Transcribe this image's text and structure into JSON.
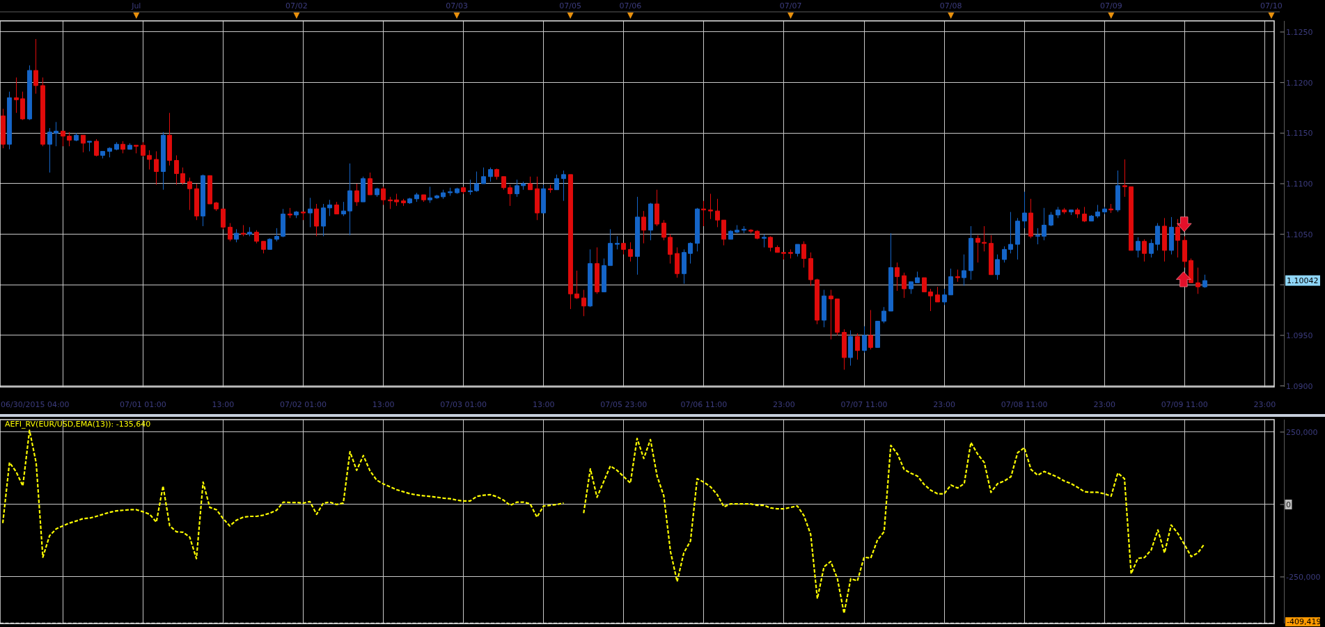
{
  "chart_data": [
    {
      "type": "candlestick",
      "categories": [
        null,
        null,
        null,
        null,
        null,
        null,
        null,
        null,
        null,
        null,
        null,
        null,
        null,
        null,
        null,
        null,
        null,
        null,
        null,
        null,
        "Jul",
        "07/01 01:00",
        null,
        null,
        null,
        null,
        null,
        null,
        null,
        null,
        null,
        null,
        null,
        "13:00",
        null,
        null,
        null,
        null,
        null,
        null,
        null,
        null,
        null,
        null,
        "07/02",
        "07/02 01:00",
        null,
        null,
        null,
        null,
        null,
        null,
        null,
        null,
        null,
        null,
        null,
        "13:00",
        null,
        null,
        null,
        null,
        null,
        null,
        null,
        null,
        null,
        null,
        "07/03",
        "07/03 01:00",
        null,
        null,
        null,
        null,
        null,
        null,
        null,
        null,
        null,
        null,
        null,
        "13:00",
        null,
        null,
        null,
        "07/05",
        null,
        null,
        null,
        null,
        null,
        null,
        null,
        "07/05 23:00",
        "07/06",
        null,
        null,
        null,
        null,
        null,
        null,
        null,
        null,
        null,
        null,
        "07/06 11:00",
        null,
        null,
        null,
        null,
        null,
        null,
        null,
        null,
        null,
        null,
        null,
        "23:00",
        "07/07",
        null,
        null,
        null,
        null,
        null,
        null,
        null,
        null,
        null,
        null,
        "07/07 11:00",
        null,
        null,
        null,
        null,
        null,
        null,
        null,
        null,
        null,
        null,
        null,
        "23:00",
        "07/08",
        null,
        null,
        null,
        null,
        null,
        null,
        null,
        null,
        null,
        null,
        "07/08 11:00",
        null,
        null,
        null,
        null,
        null,
        null,
        null,
        null,
        null,
        null,
        null,
        "23:00",
        "07/09",
        null,
        null,
        null,
        null,
        null,
        null,
        null,
        null,
        null,
        null,
        "07/09 11:00",
        null,
        null,
        null,
        null,
        null,
        null,
        null,
        null,
        null,
        null,
        null,
        "23:00",
        "07/10"
      ],
      "ohlc": [
        [
          1.1167,
          1.1174,
          1.1135,
          1.1139
        ],
        [
          1.1139,
          1.1191,
          1.1134,
          1.1185
        ],
        [
          1.1185,
          1.1205,
          1.117,
          1.1183
        ],
        [
          1.1184,
          1.1191,
          1.1163,
          1.1164
        ],
        [
          1.1164,
          1.1217,
          1.1163,
          1.1212
        ],
        [
          1.1212,
          1.1243,
          1.1189,
          1.1197
        ],
        [
          1.1197,
          1.1205,
          1.1137,
          1.1139
        ],
        [
          1.1139,
          1.1155,
          1.1111,
          1.1151
        ],
        [
          1.115,
          1.1161,
          1.1137,
          1.1152
        ],
        [
          1.1152,
          1.1152,
          1.1137,
          1.1147
        ],
        [
          1.1147,
          1.1151,
          1.1137,
          1.1143
        ],
        [
          1.1143,
          1.115,
          1.1142,
          1.1148
        ],
        [
          1.1148,
          1.1148,
          1.1131,
          1.114
        ],
        [
          1.1141,
          1.1142,
          1.1132,
          1.1142
        ],
        [
          1.1142,
          1.1144,
          1.1127,
          1.1128
        ],
        [
          1.1128,
          1.1132,
          1.1125,
          1.1132
        ],
        [
          1.1132,
          1.1136,
          1.1126,
          1.1135
        ],
        [
          1.1134,
          1.1141,
          1.1133,
          1.1139
        ],
        [
          1.1139,
          1.1142,
          1.113,
          1.1134
        ],
        [
          1.1134,
          1.114,
          1.1134,
          1.1138
        ],
        [
          1.1138,
          1.1138,
          1.113,
          1.1137
        ],
        [
          1.1138,
          1.1141,
          1.1127,
          1.1128
        ],
        [
          1.1128,
          1.1133,
          1.1114,
          1.1124
        ],
        [
          1.1124,
          1.1132,
          1.1099,
          1.1112
        ],
        [
          1.1112,
          1.1151,
          1.1094,
          1.1148
        ],
        [
          1.1148,
          1.117,
          1.1118,
          1.1123
        ],
        [
          1.1123,
          1.1128,
          1.1099,
          1.111
        ],
        [
          1.111,
          1.1116,
          1.1099,
          1.1101
        ],
        [
          1.1102,
          1.1106,
          1.1074,
          1.1095
        ],
        [
          1.1095,
          1.11,
          1.1064,
          1.1068
        ],
        [
          1.1068,
          1.1109,
          1.1058,
          1.1108
        ],
        [
          1.1108,
          1.1108,
          1.108,
          1.108
        ],
        [
          1.1081,
          1.1082,
          1.1073,
          1.1075
        ],
        [
          1.1075,
          1.1075,
          1.1055,
          1.1057
        ],
        [
          1.1057,
          1.1061,
          1.1043,
          1.1045
        ],
        [
          1.1045,
          1.1055,
          1.1042,
          1.1051
        ],
        [
          1.1051,
          1.1059,
          1.1048,
          1.105
        ],
        [
          1.105,
          1.1057,
          1.1048,
          1.1052
        ],
        [
          1.1052,
          1.1054,
          1.1041,
          1.1043
        ],
        [
          1.1043,
          1.1043,
          1.1031,
          1.1035
        ],
        [
          1.1035,
          1.1046,
          1.1035,
          1.1045
        ],
        [
          1.1045,
          1.1056,
          1.1043,
          1.1048
        ],
        [
          1.1048,
          1.1075,
          1.1047,
          1.107
        ],
        [
          1.107,
          1.1076,
          1.1066,
          1.1069
        ],
        [
          1.1069,
          1.1073,
          1.1066,
          1.1072
        ],
        [
          1.1072,
          1.1072,
          1.1064,
          1.1071
        ],
        [
          1.1071,
          1.1086,
          1.1057,
          1.1075
        ],
        [
          1.1075,
          1.108,
          1.1048,
          1.1058
        ],
        [
          1.1058,
          1.108,
          1.1048,
          1.1076
        ],
        [
          1.1076,
          1.1084,
          1.1068,
          1.1079
        ],
        [
          1.1079,
          1.1082,
          1.107,
          1.107
        ],
        [
          1.107,
          1.1082,
          1.1068,
          1.1073
        ],
        [
          1.1073,
          1.112,
          1.1049,
          1.1093
        ],
        [
          1.1093,
          1.11,
          1.1078,
          1.1082
        ],
        [
          1.1082,
          1.1107,
          1.1082,
          1.1105
        ],
        [
          1.1105,
          1.1111,
          1.1089,
          1.1089
        ],
        [
          1.1089,
          1.1096,
          1.1087,
          1.1095
        ],
        [
          1.1095,
          1.1097,
          1.1079,
          1.1084
        ],
        [
          1.1084,
          1.1087,
          1.1075,
          1.1083
        ],
        [
          1.1084,
          1.109,
          1.1078,
          1.1082
        ],
        [
          1.1083,
          1.1085,
          1.1078,
          1.1081
        ],
        [
          1.1081,
          1.1086,
          1.108,
          1.1085
        ],
        [
          1.1085,
          1.1091,
          1.1082,
          1.1089
        ],
        [
          1.1089,
          1.1089,
          1.1082,
          1.1084
        ],
        [
          1.1084,
          1.1097,
          1.1081,
          1.1086
        ],
        [
          1.1086,
          1.1089,
          1.1085,
          1.1088
        ],
        [
          1.1087,
          1.1094,
          1.1085,
          1.1091
        ],
        [
          1.1091,
          1.1096,
          1.1088,
          1.1092
        ],
        [
          1.1091,
          1.1096,
          1.109,
          1.1095
        ],
        [
          1.1096,
          1.1097,
          1.109,
          1.1092
        ],
        [
          1.1092,
          1.1104,
          1.1089,
          1.1093
        ],
        [
          1.1093,
          1.1112,
          1.1092,
          1.11
        ],
        [
          1.11,
          1.1116,
          1.11,
          1.1107
        ],
        [
          1.1107,
          1.1116,
          1.1102,
          1.1114
        ],
        [
          1.1114,
          1.1115,
          1.1104,
          1.1107
        ],
        [
          1.1107,
          1.1107,
          1.1094,
          1.1096
        ],
        [
          1.1096,
          1.1099,
          1.1078,
          1.109
        ],
        [
          1.109,
          1.1104,
          1.1087,
          1.1098
        ],
        [
          1.1098,
          1.1102,
          1.1094,
          1.11
        ],
        [
          1.11,
          1.1107,
          1.1094,
          1.1094
        ],
        [
          1.1095,
          1.1107,
          1.1064,
          1.1071
        ],
        [
          1.1071,
          1.1099,
          1.1071,
          1.1095
        ],
        [
          1.1095,
          1.1099,
          1.1091,
          1.1094
        ],
        [
          1.1094,
          1.1109,
          1.1094,
          1.1105
        ],
        [
          1.1105,
          1.1113,
          1.1083,
          1.1109
        ],
        [
          1.1109,
          1.1109,
          1.0976,
          1.0991
        ],
        [
          1.0991,
          1.1014,
          1.0986,
          1.0987
        ],
        [
          1.0987,
          1.0995,
          1.0969,
          1.0979
        ],
        [
          1.0979,
          1.1035,
          1.0978,
          1.1021
        ],
        [
          1.1021,
          1.1037,
          1.0991,
          1.0993
        ],
        [
          1.0993,
          1.1026,
          1.0993,
          1.1019
        ],
        [
          1.1019,
          1.1055,
          1.1019,
          1.1041
        ],
        [
          1.104,
          1.1048,
          1.1035,
          1.1041
        ],
        [
          1.1041,
          1.1041,
          1.103,
          1.1035
        ],
        [
          1.1035,
          1.1042,
          1.1023,
          1.1028
        ],
        [
          1.1028,
          1.1087,
          1.101,
          1.1067
        ],
        [
          1.1067,
          1.1073,
          1.1041,
          1.1054
        ],
        [
          1.1054,
          1.1081,
          1.1044,
          1.108
        ],
        [
          1.108,
          1.1094,
          1.1058,
          1.106
        ],
        [
          1.1061,
          1.1064,
          1.1044,
          1.1047
        ],
        [
          1.1047,
          1.105,
          1.1021,
          1.103
        ],
        [
          1.1031,
          1.1037,
          1.1007,
          1.1011
        ],
        [
          1.1011,
          1.1035,
          1.1001,
          1.1032
        ],
        [
          1.1031,
          1.1042,
          1.1021,
          1.1041
        ],
        [
          1.1041,
          1.1076,
          1.1033,
          1.1075
        ],
        [
          1.1075,
          1.1083,
          1.1058,
          1.1074
        ],
        [
          1.1074,
          1.109,
          1.1065,
          1.1073
        ],
        [
          1.1073,
          1.1085,
          1.1057,
          1.1064
        ],
        [
          1.1064,
          1.1064,
          1.1039,
          1.1045
        ],
        [
          1.1045,
          1.1054,
          1.1045,
          1.1053
        ],
        [
          1.1052,
          1.1059,
          1.1051,
          1.1054
        ],
        [
          1.1054,
          1.1058,
          1.1051,
          1.1055
        ],
        [
          1.1054,
          1.1055,
          1.1051,
          1.1053
        ],
        [
          1.1053,
          1.1054,
          1.1045,
          1.1046
        ],
        [
          1.1046,
          1.105,
          1.1037,
          1.1047
        ],
        [
          1.1047,
          1.1048,
          1.1033,
          1.1037
        ],
        [
          1.1037,
          1.1039,
          1.1032,
          1.1032
        ],
        [
          1.1032,
          1.1032,
          1.1025,
          1.1031
        ],
        [
          1.1032,
          1.1035,
          1.1026,
          1.1031
        ],
        [
          1.1031,
          1.104,
          1.1028,
          1.104
        ],
        [
          1.104,
          1.1043,
          1.1017,
          1.1026
        ],
        [
          1.1026,
          1.1032,
          1.0999,
          1.1005
        ],
        [
          1.1005,
          1.1006,
          1.0961,
          1.0965
        ],
        [
          1.0965,
          1.0995,
          1.0958,
          1.0989
        ],
        [
          1.0989,
          1.0995,
          1.0946,
          1.0986
        ],
        [
          1.0986,
          1.0986,
          1.095,
          1.0953
        ],
        [
          1.0953,
          1.0956,
          1.0916,
          1.0928
        ],
        [
          1.0928,
          1.0955,
          1.092,
          1.0949
        ],
        [
          1.0949,
          1.0952,
          1.0926,
          1.0935
        ],
        [
          1.0935,
          1.0959,
          1.0933,
          1.095
        ],
        [
          1.095,
          1.0975,
          1.0936,
          1.0938
        ],
        [
          1.0938,
          1.0964,
          1.0938,
          1.0964
        ],
        [
          1.0964,
          1.0978,
          1.0962,
          1.0974
        ],
        [
          1.0974,
          1.1051,
          1.0974,
          1.1017
        ],
        [
          1.1017,
          1.1022,
          1.0994,
          1.1008
        ],
        [
          1.1009,
          1.1012,
          1.0987,
          1.0996
        ],
        [
          1.0996,
          1.1003,
          1.0991,
          1.1003
        ],
        [
          1.1002,
          1.1013,
          1.1002,
          1.1007
        ],
        [
          1.1007,
          1.1007,
          1.0993,
          1.0993
        ],
        [
          1.0993,
          1.0996,
          1.0974,
          1.0989
        ],
        [
          1.099,
          1.0998,
          1.0983,
          1.0983
        ],
        [
          1.0983,
          1.0996,
          1.098,
          1.099
        ],
        [
          1.099,
          1.1016,
          1.099,
          1.1008
        ],
        [
          1.1008,
          1.1015,
          1.1003,
          1.1007
        ],
        [
          1.1007,
          1.103,
          1.0999,
          1.1014
        ],
        [
          1.1014,
          1.1058,
          1.1005,
          1.1046
        ],
        [
          1.1046,
          1.1049,
          1.1022,
          1.1042
        ],
        [
          1.1042,
          1.1058,
          1.1033,
          1.1041
        ],
        [
          1.1041,
          1.1049,
          1.101,
          1.101
        ],
        [
          1.101,
          1.103,
          1.1005,
          1.1025
        ],
        [
          1.1025,
          1.1038,
          1.1022,
          1.1035
        ],
        [
          1.1035,
          1.1072,
          1.1031,
          1.104
        ],
        [
          1.104,
          1.1066,
          1.1025,
          1.1063
        ],
        [
          1.1063,
          1.1092,
          1.1056,
          1.1071
        ],
        [
          1.1071,
          1.1085,
          1.1046,
          1.1048
        ],
        [
          1.1048,
          1.1056,
          1.104,
          1.1049
        ],
        [
          1.1048,
          1.1076,
          1.1044,
          1.1059
        ],
        [
          1.1059,
          1.1072,
          1.1058,
          1.1069
        ],
        [
          1.1069,
          1.1077,
          1.1066,
          1.1074
        ],
        [
          1.1074,
          1.1076,
          1.107,
          1.1072
        ],
        [
          1.1072,
          1.1074,
          1.1069,
          1.1074
        ],
        [
          1.1074,
          1.1076,
          1.1066,
          1.107
        ],
        [
          1.107,
          1.1077,
          1.1062,
          1.1063
        ],
        [
          1.1063,
          1.1069,
          1.1063,
          1.1068
        ],
        [
          1.1068,
          1.1079,
          1.1066,
          1.1072
        ],
        [
          1.1072,
          1.1077,
          1.107,
          1.1075
        ],
        [
          1.1075,
          1.108,
          1.1071,
          1.1074
        ],
        [
          1.1074,
          1.1113,
          1.1072,
          1.1098
        ],
        [
          1.1098,
          1.1124,
          1.1087,
          1.1097
        ],
        [
          1.1097,
          1.1097,
          1.1034,
          1.1034
        ],
        [
          1.1034,
          1.1047,
          1.1027,
          1.1043
        ],
        [
          1.1043,
          1.1045,
          1.1023,
          1.1031
        ],
        [
          1.1031,
          1.1045,
          1.1027,
          1.1041
        ],
        [
          1.104,
          1.1061,
          1.1034,
          1.1058
        ],
        [
          1.1058,
          1.1066,
          1.1023,
          1.1034
        ],
        [
          1.1034,
          1.1067,
          1.103,
          1.1057
        ],
        [
          1.1057,
          1.1065,
          1.1027,
          1.1044
        ],
        [
          1.1044,
          1.1048,
          1.1017,
          1.1023
        ],
        [
          1.1024,
          1.1026,
          1.1002,
          1.1002
        ],
        [
          1.1002,
          1.1017,
          1.0991,
          1.0998
        ],
        [
          1.0998,
          1.101,
          1.0997,
          1.10042
        ],
        null,
        null,
        null,
        null,
        null,
        null,
        null,
        null,
        null,
        null
      ],
      "colors": [
        "#e00b0b",
        "#1565c8",
        "#e00b0b",
        "#e00b0b",
        "#1565c8",
        "#e00b0b",
        "#e00b0b",
        "#1565c8",
        "#1565c8",
        "#e00b0b",
        "#e00b0b",
        "#1565c8",
        "#e00b0b",
        "#1565c8",
        "#e00b0b",
        "#1565c8",
        "#1565c8",
        "#1565c8",
        "#e00b0b",
        "#1565c8",
        "#e00b0b",
        "#e00b0b",
        "#e00b0b",
        "#e00b0b",
        "#1565c8",
        "#e00b0b",
        "#e00b0b",
        "#e00b0b",
        "#e00b0b",
        "#e00b0b",
        "#1565c8",
        "#e00b0b",
        "#e00b0b",
        "#e00b0b",
        "#e00b0b",
        "#1565c8",
        "#e00b0b",
        "#1565c8",
        "#e00b0b",
        "#e00b0b",
        "#1565c8",
        "#1565c8",
        "#1565c8",
        "#e00b0b",
        "#1565c8",
        "#e00b0b",
        "#1565c8",
        "#e00b0b",
        "#1565c8",
        "#1565c8",
        "#e00b0b",
        "#1565c8",
        "#1565c8",
        "#e00b0b",
        "#1565c8",
        "#e00b0b",
        "#1565c8",
        "#e00b0b",
        "#e00b0b",
        "#e00b0b",
        "#e00b0b",
        "#1565c8",
        "#1565c8",
        "#e00b0b",
        "#1565c8",
        "#1565c8",
        "#1565c8",
        "#1565c8",
        "#1565c8",
        "#e00b0b",
        "#1565c8",
        "#1565c8",
        "#1565c8",
        "#1565c8",
        "#e00b0b",
        "#e00b0b",
        "#e00b0b",
        "#1565c8",
        "#1565c8",
        "#e00b0b",
        "#e00b0b",
        "#1565c8",
        "#e00b0b",
        "#1565c8",
        "#1565c8",
        "#e00b0b",
        "#e00b0b",
        "#e00b0b",
        "#1565c8",
        "#e00b0b",
        "#1565c8",
        "#1565c8",
        "#1565c8",
        "#e00b0b",
        "#e00b0b",
        "#1565c8",
        "#e00b0b",
        "#1565c8",
        "#e00b0b",
        "#e00b0b",
        "#e00b0b",
        "#e00b0b",
        "#1565c8",
        "#1565c8",
        "#1565c8",
        "#e00b0b",
        "#e00b0b",
        "#e00b0b",
        "#e00b0b",
        "#1565c8",
        "#1565c8",
        "#1565c8",
        "#e00b0b",
        "#e00b0b",
        "#1565c8",
        "#e00b0b",
        "#e00b0b",
        "#e00b0b",
        "#e00b0b",
        "#1565c8",
        "#e00b0b",
        "#e00b0b",
        "#e00b0b",
        "#1565c8",
        "#e00b0b",
        "#e00b0b",
        "#e00b0b",
        "#1565c8",
        "#e00b0b",
        "#1565c8",
        "#e00b0b",
        "#1565c8",
        "#1565c8",
        "#1565c8",
        "#e00b0b",
        "#e00b0b",
        "#1565c8",
        "#1565c8",
        "#e00b0b",
        "#e00b0b",
        "#e00b0b",
        "#1565c8",
        "#1565c8",
        "#e00b0b",
        "#1565c8",
        "#1565c8",
        "#e00b0b",
        "#e00b0b",
        "#e00b0b",
        "#1565c8",
        "#1565c8",
        "#1565c8",
        "#1565c8",
        "#1565c8",
        "#e00b0b",
        "#1565c8",
        "#1565c8",
        "#1565c8",
        "#1565c8",
        "#e00b0b",
        "#1565c8",
        "#e00b0b",
        "#e00b0b",
        "#1565c8",
        "#1565c8",
        "#1565c8",
        "#e00b0b",
        "#1565c8",
        "#e00b0b",
        "#e00b0b",
        "#1565c8",
        "#e00b0b",
        "#1565c8",
        "#1565c8",
        "#e00b0b",
        "#1565c8",
        "#e00b0b",
        "#e00b0b",
        "#e00b0b",
        "#e00b0b",
        "#1565c8",
        null,
        null,
        null,
        null,
        null,
        null,
        null,
        null,
        null,
        null
      ],
      "value_labels": [
        null,
        null,
        null,
        null,
        null,
        null,
        null,
        null,
        null,
        null,
        null,
        null,
        null,
        null,
        null,
        null,
        null,
        null,
        null,
        null,
        null,
        null,
        null,
        null,
        null,
        null,
        null,
        null,
        null,
        null,
        null,
        null,
        null,
        null,
        null,
        null,
        null,
        null,
        null,
        null,
        null,
        null,
        null,
        null,
        null,
        null,
        null,
        null,
        null,
        null,
        null,
        null,
        null,
        null,
        null,
        null,
        null,
        null,
        null,
        null,
        null,
        null,
        null,
        null,
        null,
        null,
        null,
        null,
        null,
        null,
        null,
        null,
        null,
        null,
        null,
        null,
        null,
        null,
        null,
        null,
        null,
        null,
        null,
        null,
        null,
        null,
        null,
        null,
        null,
        null,
        null,
        null,
        null,
        null,
        null,
        null,
        null,
        null,
        null,
        null,
        null,
        null,
        null,
        null,
        null,
        null,
        null,
        null,
        null,
        null,
        null,
        null,
        null,
        null,
        null,
        null,
        null,
        null,
        null,
        null,
        null,
        null,
        null,
        null,
        null,
        null,
        null,
        null,
        null,
        null,
        null,
        null,
        null,
        null,
        null,
        null,
        null,
        null,
        null,
        null,
        null,
        null,
        null,
        null,
        null,
        null,
        null,
        null,
        null,
        null,
        null,
        null,
        null,
        null,
        null,
        null,
        null,
        null,
        null,
        null,
        null,
        null,
        null,
        null,
        null,
        null,
        null,
        null,
        null,
        null,
        null,
        null,
        null,
        null,
        null,
        null,
        null,
        null,
        null,
        null,
        "1.10042",
        null,
        null,
        null,
        null,
        null,
        null,
        null,
        null,
        null,
        null
      ],
      "ylim": [
        1.0899,
        1.1261
      ],
      "yticks": [
        {
          "value": 1.09,
          "label": "1.0900"
        },
        {
          "value": 1.095,
          "label": "1.0950"
        },
        {
          "value": 1.1,
          "label": null
        },
        {
          "value": 1.105,
          "label": "1.1050"
        },
        {
          "value": 1.11,
          "label": "1.1100"
        },
        {
          "value": 1.115,
          "label": "1.1150"
        },
        {
          "value": 1.12,
          "label": "1.1200"
        },
        {
          "value": 1.125,
          "label": "1.1250"
        }
      ],
      "grid": true,
      "annotations": [
        "06/30/2015 04:00"
      ]
    },
    {
      "type": "line",
      "title": "AEFI_RV(EUR/USD,EMA(13)): -135,640",
      "categories": [
        null,
        null,
        null,
        null,
        null,
        null,
        null,
        null,
        null,
        null,
        null,
        null,
        null,
        null,
        null,
        null,
        null,
        null,
        null,
        null,
        null,
        null,
        null,
        null,
        null,
        null,
        null,
        null,
        null,
        null,
        null,
        null,
        null,
        null,
        null,
        null,
        null,
        null,
        null,
        null,
        null,
        null,
        null,
        null,
        null,
        null,
        null,
        null,
        null,
        null,
        null,
        null,
        null,
        null,
        null,
        null,
        null,
        null,
        null,
        null,
        null,
        null,
        null,
        null,
        null,
        null,
        null,
        null,
        null,
        null,
        null,
        null,
        null,
        null,
        null,
        null,
        null,
        null,
        null,
        null,
        null,
        null,
        null,
        null,
        null,
        null,
        null,
        null,
        null,
        null,
        null,
        null,
        null,
        null,
        null,
        null,
        null,
        null,
        null,
        null,
        null,
        null,
        null,
        null,
        null,
        null,
        null,
        null,
        null,
        null,
        null,
        null,
        null,
        null,
        null,
        null,
        null,
        null,
        null,
        null,
        null,
        null,
        null,
        null,
        null,
        null,
        null,
        null,
        null,
        null,
        null,
        null,
        null,
        null,
        null,
        null,
        null,
        null,
        null,
        null,
        null,
        null,
        null,
        null,
        null,
        null,
        null,
        null,
        null,
        null,
        null,
        null,
        null,
        null,
        null,
        null,
        null,
        null,
        null,
        null,
        null,
        null,
        null,
        null,
        null,
        null,
        null,
        null,
        null,
        null,
        null,
        null,
        null,
        null,
        null,
        null,
        null,
        null,
        null,
        null,
        null,
        null,
        null,
        null,
        null,
        null,
        null,
        null,
        null,
        null,
        null
      ],
      "series": [
        {
          "color": "#ffff00",
          "values": [
            -64000,
            145000,
            113000,
            64000,
            256000,
            143000,
            -182000,
            -108000,
            -84000,
            -74000,
            -64000,
            -57000,
            -49000,
            -47000,
            -41000,
            -34000,
            -27000,
            -22000,
            -20000,
            -18000,
            -18000,
            -25000,
            -34000,
            -61000,
            64000,
            -74000,
            -94000,
            -96000,
            -113000,
            -187000,
            77000,
            -10000,
            -18000,
            -49000,
            -74000,
            -54000,
            -44000,
            -41000,
            -41000,
            -37000,
            -30000,
            -20000,
            8000,
            7000,
            7000,
            5000,
            10000,
            -34000,
            5000,
            8000,
            0,
            5000,
            182000,
            118000,
            169000,
            116000,
            84000,
            71000,
            61000,
            51000,
            44000,
            37000,
            33000,
            30000,
            28000,
            25000,
            22000,
            20000,
            15000,
            12000,
            12000,
            28000,
            32000,
            34000,
            27000,
            15000,
            -3000,
            8000,
            8000,
            2000,
            -44000,
            -5000,
            -3000,
            0,
            5000,
            null,
            null,
            -30000,
            123000,
            25000,
            79000,
            133000,
            118000,
            96000,
            74000,
            228000,
            159000,
            224000,
            98000,
            30000,
            -162000,
            -266000,
            -167000,
            -126000,
            89000,
            77000,
            61000,
            34000,
            -8000,
            2000,
            2000,
            2000,
            2000,
            -3000,
            -3000,
            -12000,
            -15000,
            -15000,
            -10000,
            -5000,
            -39000,
            -103000,
            -325000,
            -215000,
            -197000,
            -256000,
            -376000,
            -256000,
            -264000,
            -182000,
            -185000,
            -123000,
            -94000,
            204000,
            174000,
            121000,
            108000,
            98000,
            69000,
            49000,
            37000,
            37000,
            67000,
            57000,
            72000,
            214000,
            174000,
            145000,
            42000,
            72000,
            81000,
            96000,
            179000,
            196000,
            121000,
            101000,
            114000,
            104000,
            94000,
            81000,
            72000,
            59000,
            44000,
            42000,
            42000,
            37000,
            29000,
            109000,
            89000,
            -239000,
            -186000,
            -183000,
            -157000,
            -88000,
            -167000,
            -71000,
            -100000,
            -139000,
            -180000,
            -167000,
            -135640,
            null,
            null,
            null,
            null,
            null,
            null,
            null,
            null,
            null,
            null
          ]
        }
      ],
      "line_style": "dashed",
      "ylim": [
        -411000,
        293000
      ],
      "yticks": [
        {
          "value": -250000,
          "label": "-250,000"
        },
        {
          "value": 0,
          "label": "0"
        },
        {
          "value": 250000,
          "label": "250,000"
        }
      ],
      "grid": true,
      "tick_labels": "y",
      "ref_lines": [
        {
          "axis": "y",
          "value": -409419,
          "label": "-409,419",
          "color": "#ffffff",
          "line_style": "dashed"
        }
      ]
    }
  ]
}
